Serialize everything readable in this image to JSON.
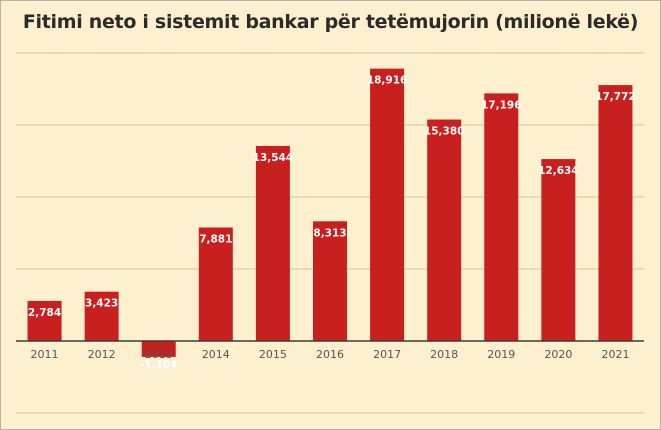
{
  "chart_data": {
    "type": "bar",
    "title": "Fitimi neto i sistemit bankar për tetëmujorin (milionë lekë)",
    "categories": [
      "2011",
      "2012",
      "2013",
      "2014",
      "2015",
      "2016",
      "2017",
      "2018",
      "2019",
      "2020",
      "2021"
    ],
    "values": [
      2784,
      3423,
      -1104,
      7881,
      13544,
      8313,
      18916,
      15380,
      17196,
      12634,
      17772
    ],
    "data_labels": [
      "2,784",
      "3,423",
      "-1,104",
      "7,881",
      "13,544",
      "8,313",
      "18,916",
      "15,380",
      "17,196",
      "12,634",
      "17,772"
    ],
    "xlabel": "",
    "ylabel": "",
    "ylim": [
      -5000,
      20000
    ],
    "gridline_step": 5000,
    "grid": true,
    "bar_color": "#c8201e",
    "background_color": "#fdf0cf"
  }
}
